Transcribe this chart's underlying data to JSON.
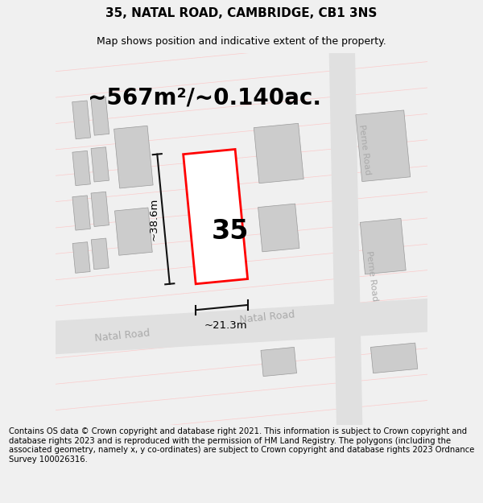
{
  "title": "35, NATAL ROAD, CAMBRIDGE, CB1 3NS",
  "subtitle": "Map shows position and indicative extent of the property.",
  "area_text": "~567m²/~0.140ac.",
  "width_label": "~21.3m",
  "height_label": "~38.6m",
  "number_label": "35",
  "road_label_natal_left": "Natal Road",
  "road_label_natal_right": "Natal Road",
  "road_label_perne_top": "Perne Road",
  "road_label_perne_mid": "Perne Road",
  "footer_text": "Contains OS data © Crown copyright and database right 2021. This information is subject to Crown copyright and database rights 2023 and is reproduced with the permission of HM Land Registry. The polygons (including the associated geometry, namely x, y co-ordinates) are subject to Crown copyright and database rights 2023 Ordnance Survey 100026316.",
  "bg_color": "#f0f0f0",
  "map_bg": "#ffffff",
  "road_fill": "#e0e0e0",
  "building_fill": "#cccccc",
  "property_outline": "#ff0000",
  "property_fill": "#ffffff",
  "dim_line_color": "#111111",
  "road_text_color": "#aaaaaa",
  "title_fontsize": 11,
  "subtitle_fontsize": 9,
  "area_fontsize": 20,
  "dim_fontsize": 9.5,
  "number_fontsize": 24,
  "footer_fontsize": 7.2,
  "tilt_deg": 5.5,
  "grid_line_color": "#ffbbbb",
  "grid_line_alpha": 0.7,
  "grid_line_lw": 0.5
}
